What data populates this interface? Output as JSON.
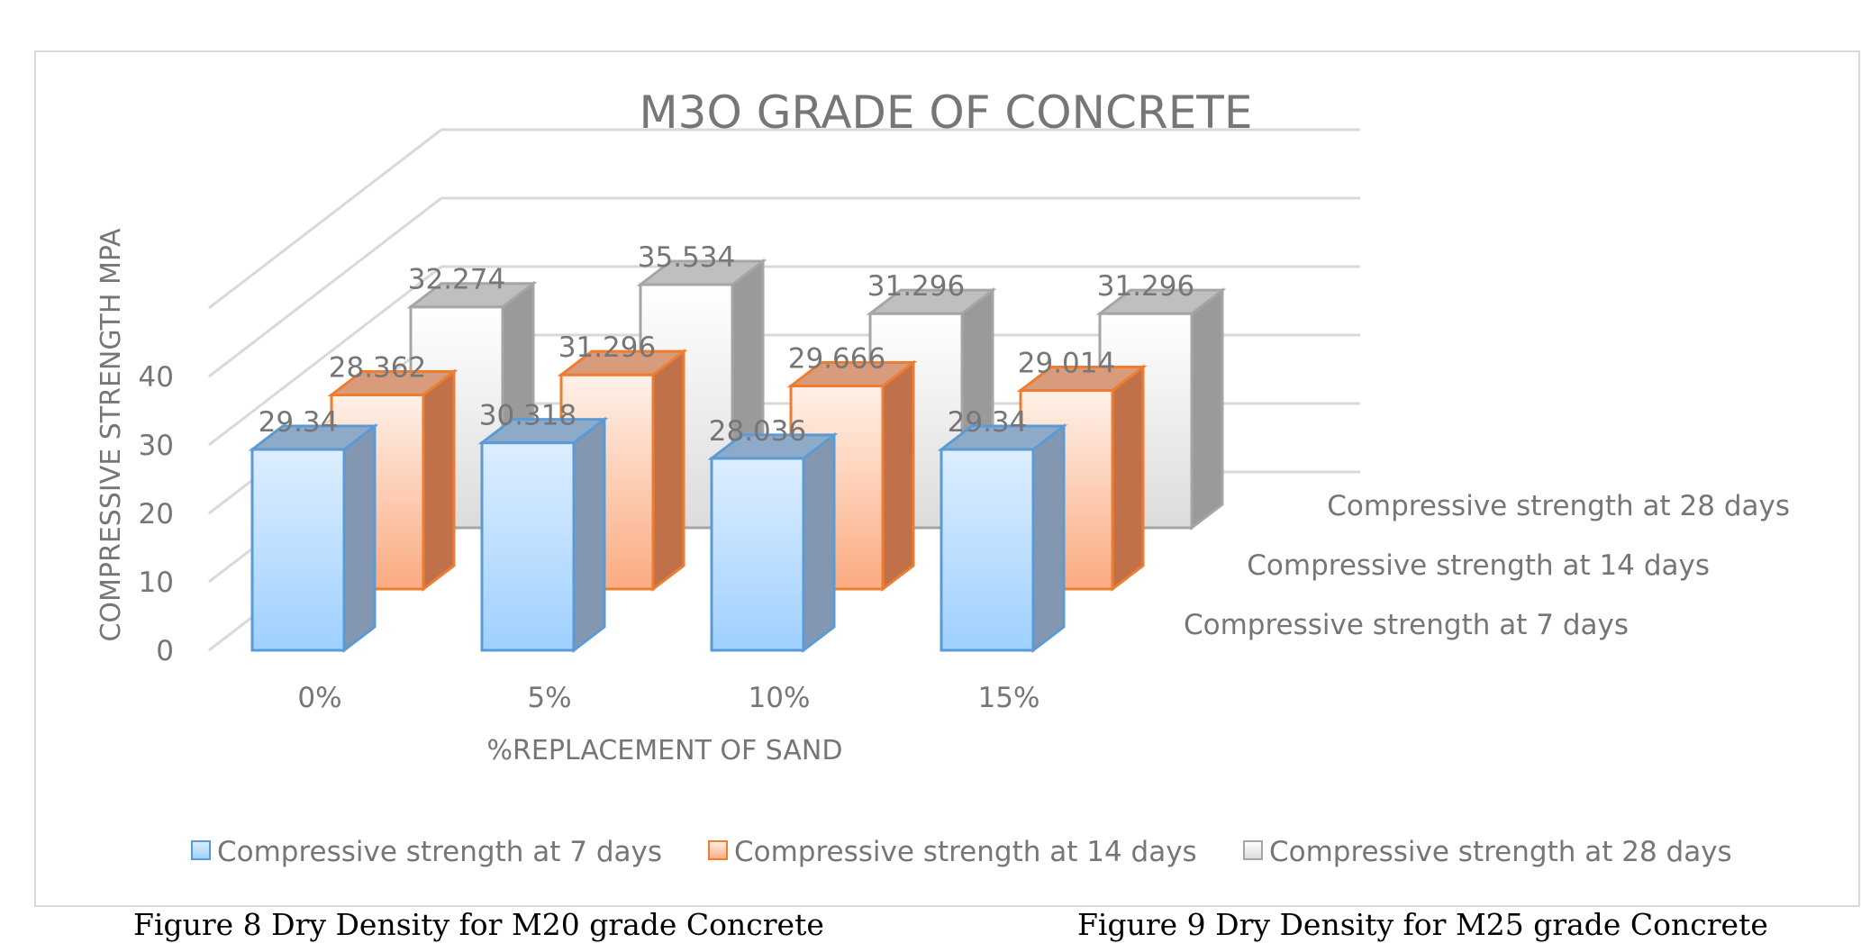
{
  "chart_data": {
    "type": "bar",
    "title": "M3O GRADE OF CONCRETE",
    "xlabel": "%REPLACEMENT OF SAND",
    "ylabel": "COMPRESSIVE STRENGTH MPA",
    "categories": [
      "0%",
      "5%",
      "10%",
      "15%"
    ],
    "yticks": [
      0,
      10,
      20,
      30,
      40
    ],
    "ylim": [
      0,
      40
    ],
    "series": [
      {
        "name": "Compressive strength at 7 days",
        "values": [
          29.34,
          30.318,
          28.036,
          29.34
        ],
        "labels": [
          "29.34",
          "30.318",
          "28.036",
          "29.34"
        ],
        "color": "#5b9bd5"
      },
      {
        "name": "Compressive strength at 14 days",
        "values": [
          28.362,
          31.296,
          29.666,
          29.014
        ],
        "labels": [
          "28.362",
          "31.296",
          "29.666",
          "29.014"
        ],
        "color": "#ed7d31"
      },
      {
        "name": "Compressive strength at 28 days",
        "values": [
          32.274,
          35.534,
          31.296,
          31.296
        ],
        "labels": [
          "32.274",
          "35.534",
          "31.296",
          "31.296"
        ],
        "color": "#a5a5a5"
      }
    ],
    "grid": true,
    "legend": "bottom",
    "style": "3d-clustered-column"
  },
  "captions": {
    "left": "Figure 8 Dry Density for M20 grade Concrete",
    "right": "Figure 9 Dry Density for M25 grade Concrete"
  }
}
